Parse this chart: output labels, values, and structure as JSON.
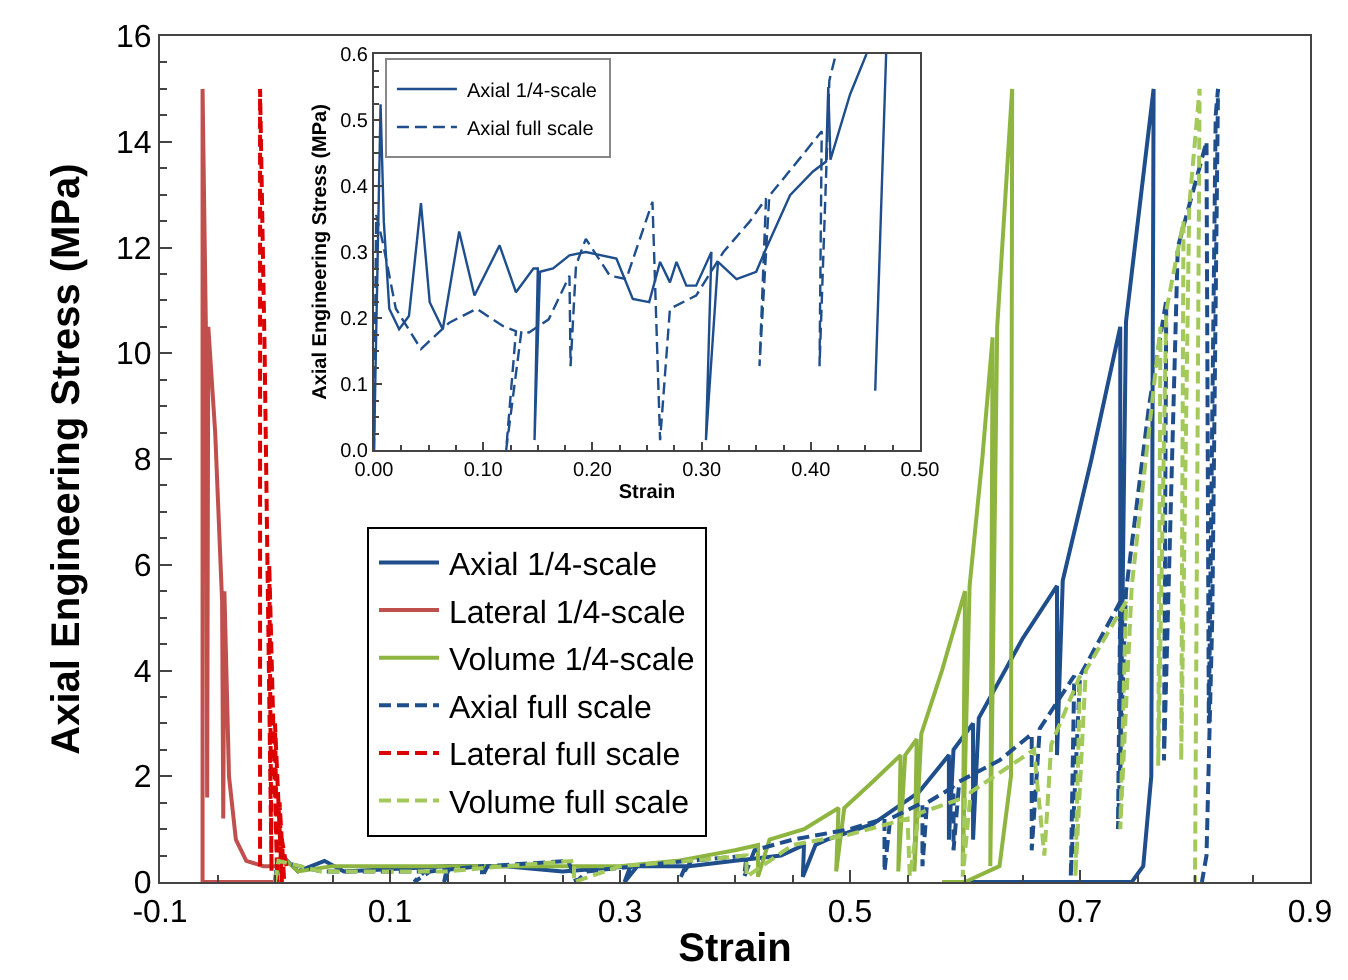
{
  "chart_data": [
    {
      "type": "line",
      "xlabel": "Strain",
      "ylabel": "Axial Engineering Stress (MPa)",
      "xlim": [
        -0.1,
        0.9
      ],
      "xticks": [
        -0.1,
        0.1,
        0.3,
        0.5,
        0.7,
        0.9
      ],
      "ylim": [
        0,
        16
      ],
      "yticks": [
        0,
        2,
        4,
        6,
        8,
        10,
        12,
        14,
        16
      ],
      "grid": false,
      "legend": "left",
      "series": [
        {
          "name": "Axial 1/4-scale",
          "color": "#1f4e8c",
          "line_style": "solid",
          "x": [
            0,
            0.006,
            0.02,
            0.043,
            0.06,
            0.15,
            0.147,
            0.152,
            0.2,
            0.25,
            0.309,
            0.304,
            0.315,
            0.36,
            0.4,
            0.44,
            0.46,
            0.459,
            0.47,
            0.48,
            0.52,
            0.56,
            0.586,
            0.586,
            0.59,
            0.607,
            0.607,
            0.612,
            0.65,
            0.68,
            0.68,
            0.685,
            0.71,
            0.735,
            0.735,
            0.74,
            0.764,
            0.762,
            0.755,
            0.745,
            0.6
          ],
          "values": [
            0,
            0.5,
            0.2,
            0.4,
            0.2,
            0.3,
            0,
            0.3,
            0.3,
            0.2,
            0.3,
            0,
            0.3,
            0.3,
            0.4,
            0.5,
            0.7,
            0.1,
            0.7,
            0.8,
            1.1,
            1.7,
            2.4,
            0.8,
            2.5,
            3,
            0.8,
            3.1,
            4.6,
            5.6,
            2.4,
            5.7,
            8,
            10.5,
            1.9,
            10.6,
            15,
            2,
            0.3,
            0,
            0
          ]
        },
        {
          "name": "Lateral 1/4-scale",
          "color": "#c0504d",
          "line_style": "solid",
          "x": [
            0.004,
            -0.01,
            -0.025,
            -0.034,
            -0.04,
            -0.044,
            -0.045,
            -0.046,
            -0.052,
            -0.058,
            -0.059,
            -0.06,
            -0.063,
            -0.063,
            0.004
          ],
          "values": [
            0.3,
            0.3,
            0.4,
            0.8,
            2,
            5.5,
            1.2,
            5.3,
            8.5,
            10.5,
            1.6,
            10.3,
            15,
            0,
            0
          ]
        },
        {
          "name": "Volume 1/4-scale",
          "color": "#8db53f",
          "line_style": "solid",
          "x": [
            0,
            0.005,
            0.02,
            0.05,
            0.1,
            0.15,
            0.2,
            0.25,
            0.3,
            0.35,
            0.4,
            0.42,
            0.42,
            0.43,
            0.46,
            0.49,
            0.488,
            0.495,
            0.52,
            0.544,
            0.542,
            0.548,
            0.558,
            0.556,
            0.562,
            0.58,
            0.6,
            0.598,
            0.604,
            0.615,
            0.624,
            0.622,
            0.628,
            0.641,
            0.64,
            0.63,
            0.6,
            0.58
          ],
          "values": [
            0,
            0.5,
            0.2,
            0.3,
            0.3,
            0.3,
            0.3,
            0.3,
            0.3,
            0.4,
            0.6,
            0.7,
            0.1,
            0.8,
            1,
            1.4,
            0.2,
            1.4,
            1.9,
            2.4,
            0.2,
            2.4,
            2.7,
            0.2,
            2.8,
            4,
            5.5,
            0.3,
            5.6,
            8,
            10.3,
            0.3,
            10.5,
            15,
            2,
            0.3,
            0,
            0
          ]
        },
        {
          "name": "Axial full scale",
          "color": "#1f4e8c",
          "line_style": "dashed",
          "x": [
            0,
            0.002,
            0.04,
            0.1,
            0.13,
            0.121,
            0.135,
            0.18,
            0.18,
            0.185,
            0.255,
            0.262,
            0.271,
            0.359,
            0.353,
            0.362,
            0.41,
            0.408,
            0.417,
            0.45,
            0.5,
            0.53,
            0.53,
            0.535,
            0.563,
            0.563,
            0.567,
            0.59,
            0.59,
            0.595,
            0.63,
            0.658,
            0.658,
            0.665,
            0.695,
            0.692,
            0.7,
            0.735,
            0.733,
            0.74,
            0.76,
            0.775,
            0.773,
            0.785,
            0.81,
            0.812,
            0.818,
            0.82,
            0.815,
            0.81,
            0.806
          ],
          "values": [
            0,
            0.4,
            0.2,
            0.2,
            0.2,
            0,
            0.2,
            0.3,
            0.1,
            0.3,
            0.4,
            0,
            0.2,
            0.4,
            0.1,
            0.4,
            0.5,
            0.1,
            0.6,
            0.8,
            1,
            1.2,
            0.2,
            1.2,
            1.5,
            0.3,
            1.5,
            1.8,
            0.6,
            1.9,
            2.3,
            2.8,
            0.6,
            2.9,
            3.9,
            0.1,
            3.9,
            5.3,
            1,
            5.5,
            9,
            11,
            2.3,
            12,
            14,
            3,
            14.5,
            15,
            5,
            0.5,
            0
          ]
        },
        {
          "name": "Lateral full scale",
          "color": "#dd0000",
          "line_style": "dashed",
          "x": [
            0.01,
            0.006,
            0.008,
            0.004,
            0.006,
            0,
            0.002,
            -0.005,
            -0.003,
            -0.009,
            -0.013,
            -0.013
          ],
          "values": [
            0.3,
            0.8,
            0,
            1.5,
            0,
            3,
            0,
            6,
            0.2,
            10,
            15,
            0.3
          ]
        },
        {
          "name": "Volume full scale",
          "color": "#a2c95a",
          "line_style": "dashed",
          "x": [
            0,
            0.003,
            0.04,
            0.1,
            0.15,
            0.2,
            0.26,
            0.26,
            0.3,
            0.36,
            0.41,
            0.41,
            0.45,
            0.5,
            0.55,
            0.552,
            0.56,
            0.6,
            0.598,
            0.605,
            0.66,
            0.669,
            0.675,
            0.7,
            0.696,
            0.705,
            0.74,
            0.735,
            0.745,
            0.77,
            0.768,
            0.775,
            0.79,
            0.788,
            0.795,
            0.804,
            0.8
          ],
          "values": [
            0,
            0.4,
            0.2,
            0.2,
            0.2,
            0.3,
            0.4,
            0,
            0.3,
            0.4,
            0.5,
            0.1,
            0.7,
            0.9,
            1.2,
            0.1,
            1.3,
            1.6,
            0.1,
            1.7,
            2.5,
            0.5,
            2.6,
            3.9,
            0.1,
            4,
            5.3,
            1,
            5.6,
            10.5,
            2.2,
            10.8,
            12.5,
            2.3,
            12.8,
            15,
            0
          ]
        }
      ]
    },
    {
      "type": "line",
      "xlabel": "Strain",
      "ylabel": "Axial Engineering Stress (MPa)",
      "xlim": [
        0,
        0.5
      ],
      "xticks": [
        {
          "value": 0,
          "label": "0.00"
        },
        {
          "value": 0.1,
          "label": "0.10"
        },
        {
          "value": 0.2,
          "label": "0.20"
        },
        {
          "value": 0.3,
          "label": "0.30"
        },
        {
          "value": 0.4,
          "label": "0.40"
        },
        {
          "value": 0.5,
          "label": "0.50"
        }
      ],
      "ylim": [
        0,
        0.6
      ],
      "yticks": [
        {
          "value": 0,
          "label": "0.0"
        },
        0.1,
        0.2,
        0.3,
        0.4,
        0.5,
        0.6
      ],
      "grid": false,
      "legend": "top left",
      "series": [
        {
          "name": "Axial 1/4-scale",
          "color": "#1f4e8c",
          "line_style": "solid",
          "x": [
            0,
            0.006,
            0.009,
            0.014,
            0.023,
            0.032,
            0.043,
            0.051,
            0.063,
            0.078,
            0.092,
            0.115,
            0.13,
            0.146,
            0.15,
            0.147,
            0.152,
            0.164,
            0.179,
            0.194,
            0.222,
            0.237,
            0.252,
            0.262,
            0.271,
            0.277,
            0.286,
            0.295,
            0.309,
            0.304,
            0.315,
            0.332,
            0.35,
            0.359,
            0.381,
            0.402,
            0.414,
            0.416,
            0.418,
            0.436,
            0.451,
            0.46,
            0.469,
            0.459
          ],
          "values": [
            0,
            0.524,
            0.346,
            0.214,
            0.183,
            0.203,
            0.374,
            0.224,
            0.183,
            0.331,
            0.234,
            0.31,
            0.239,
            0.275,
            0.275,
            0.015,
            0.27,
            0.275,
            0.295,
            0.3,
            0.29,
            0.229,
            0.224,
            0.285,
            0.254,
            0.285,
            0.249,
            0.249,
            0.3,
            0.015,
            0.285,
            0.259,
            0.27,
            0.305,
            0.386,
            0.422,
            0.437,
            0.55,
            0.44,
            0.539,
            0.6,
            null,
            0.6,
            0.09
          ]
        },
        {
          "name": "Axial full scale",
          "color": "#1f4e8c",
          "line_style": "dashed",
          "x": [
            0,
            0.002,
            0.008,
            0.02,
            0.043,
            0.069,
            0.094,
            0.118,
            0.13,
            0.121,
            0.135,
            0.142,
            0.16,
            0.179,
            0.18,
            0.185,
            0.194,
            0.216,
            0.231,
            0.255,
            0.262,
            0.271,
            0.295,
            0.32,
            0.344,
            0.359,
            0.353,
            0.362,
            0.393,
            0.41,
            0.408,
            0.417,
            0.423
          ],
          "values": [
            0,
            0.356,
            0.315,
            0.214,
            0.153,
            0.193,
            0.214,
            0.188,
            0.18,
            0,
            0.18,
            0.178,
            0.198,
            0.264,
            0.127,
            0.28,
            0.32,
            0.264,
            0.259,
            0.376,
            0.015,
            0.214,
            0.234,
            0.3,
            0.346,
            0.381,
            0.127,
            0.385,
            0.448,
            0.483,
            0.127,
            0.56,
            0.6
          ]
        }
      ]
    }
  ]
}
